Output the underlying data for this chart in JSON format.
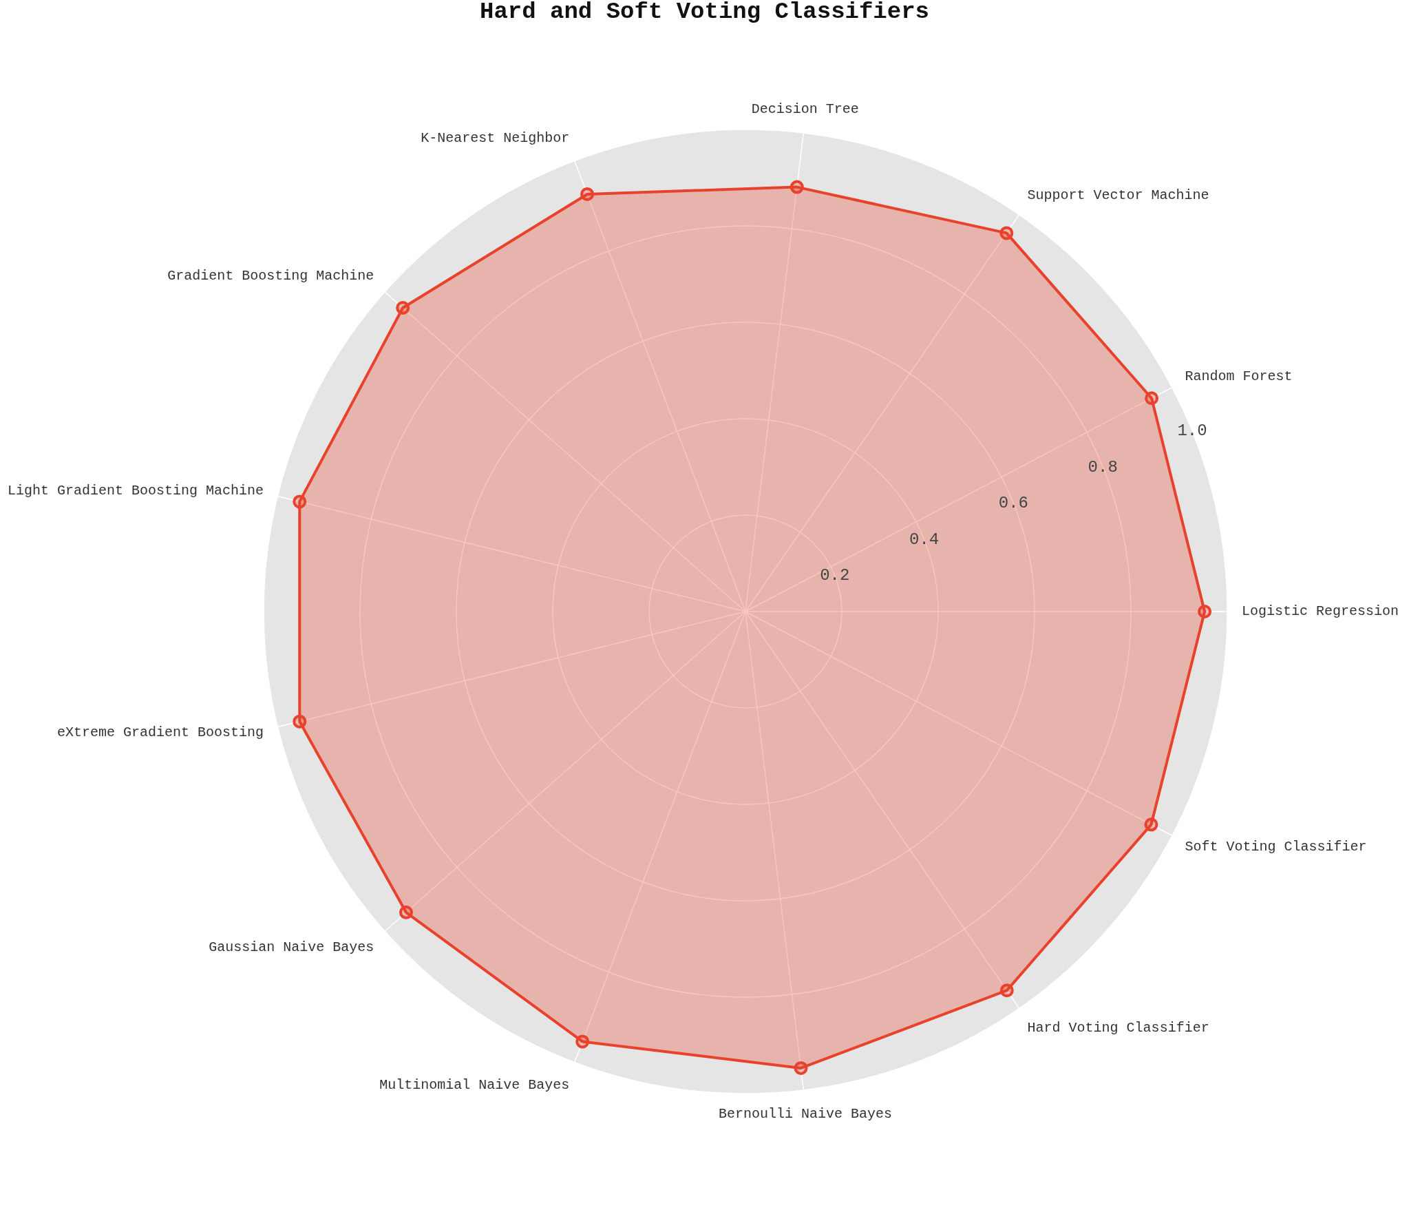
{
  "chart_data": {
    "type": "radar",
    "title": "Hard and Soft Voting Classifiers",
    "categories": [
      "Decision Tree",
      "Support Vector Machine",
      "Random Forest",
      "Logistic Regression",
      "Soft Voting Classifier",
      "Hard Voting Classifier",
      "Bernoulli Naive Bayes",
      "Multinomial Naive Bayes",
      "Gaussian Naive Bayes",
      "eXtreme Gradient Boosting",
      "Light Gradient Boosting Machine",
      "Gradient Boosting Machine",
      "K-Nearest Neighbor"
    ],
    "series": [
      {
        "color": "#e8412c",
        "values": [
          0.887,
          0.954,
          0.952,
          0.953,
          0.951,
          0.955,
          0.954,
          0.954,
          0.941,
          0.953,
          0.953,
          0.95,
          0.926
        ]
      }
    ],
    "ylim": [
      0,
      1
    ],
    "yticks": [
      0.2,
      0.4,
      0.6,
      0.8,
      {
        "value": 1,
        "label": "1.0"
      }
    ],
    "grid": true,
    "marker": "circle"
  }
}
